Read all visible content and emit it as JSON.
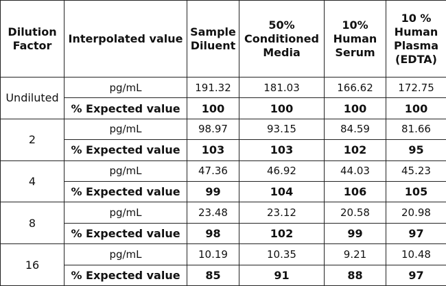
{
  "table": {
    "header": [
      "Dilution Factor",
      "Interpolated value",
      "Sample Diluent",
      "50% Conditioned Media",
      "10% Human Serum",
      "10 % Human Plasma (EDTA)"
    ],
    "row_labels": [
      "pg/mL",
      "% Expected value"
    ],
    "groups": [
      {
        "factor": "Undiluted",
        "pg": [
          191.32,
          181.03,
          166.62,
          172.75
        ],
        "expected": [
          100,
          100,
          100,
          100
        ]
      },
      {
        "factor": "2",
        "pg": [
          98.97,
          93.15,
          84.59,
          81.66
        ],
        "expected": [
          103,
          103,
          102,
          95
        ]
      },
      {
        "factor": "4",
        "pg": [
          47.36,
          46.92,
          44.03,
          45.23
        ],
        "expected": [
          99,
          104,
          106,
          105
        ]
      },
      {
        "factor": "8",
        "pg": [
          23.48,
          23.12,
          20.58,
          20.98
        ],
        "expected": [
          98,
          102,
          99,
          97
        ]
      },
      {
        "factor": "16",
        "pg": [
          10.19,
          10.35,
          9.21,
          10.48
        ],
        "expected": [
          85,
          91,
          88,
          97
        ]
      }
    ]
  }
}
